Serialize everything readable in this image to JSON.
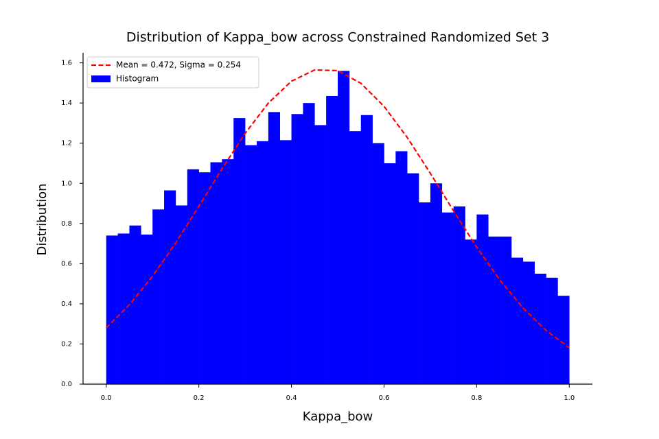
{
  "chart_data": {
    "type": "histogram",
    "title": "Distribution of Kappa_bow across Constrained Randomized Set 3",
    "xlabel": "Kappa_bow",
    "ylabel": "Distribution",
    "xlim": [
      -0.05,
      1.05
    ],
    "ylim": [
      0,
      1.65
    ],
    "xticks": [
      {
        "value": 0,
        "label": "0.0"
      },
      {
        "value": 0.2,
        "label": "0.2"
      },
      {
        "value": 0.4,
        "label": "0.4"
      },
      {
        "value": 0.6,
        "label": "0.6"
      },
      {
        "value": 0.8,
        "label": "0.8"
      },
      {
        "value": 1,
        "label": "1.0"
      }
    ],
    "yticks": [
      {
        "value": 0,
        "label": "0.0"
      },
      {
        "value": 0.2,
        "label": "0.2"
      },
      {
        "value": 0.4,
        "label": "0.4"
      },
      {
        "value": 0.6,
        "label": "0.6"
      },
      {
        "value": 0.8,
        "label": "0.8"
      },
      {
        "value": 1,
        "label": "1.0"
      },
      {
        "value": 1.2,
        "label": "1.2"
      },
      {
        "value": 1.4,
        "label": "1.4"
      },
      {
        "value": 1.6,
        "label": "1.6"
      }
    ],
    "legend": "upper left",
    "series": [
      {
        "name": "Mean = 0.472, Sigma = 0.254",
        "type": "line",
        "color": "#ff0000",
        "dashed": true,
        "x": [
          0,
          0.05,
          0.1,
          0.15,
          0.2,
          0.25,
          0.3,
          0.35,
          0.4,
          0.45,
          0.5,
          0.55,
          0.6,
          0.65,
          0.7,
          0.75,
          0.8,
          0.85,
          0.9,
          0.95,
          1
        ],
        "values": [
          0.2794,
          0.395,
          0.5375,
          0.7031,
          0.8852,
          1.0719,
          1.2488,
          1.3994,
          1.5087,
          1.5647,
          1.5611,
          1.4982,
          1.3834,
          1.2287,
          1.0498,
          0.8629,
          0.6823,
          0.5189,
          0.3798,
          0.2673,
          0.1811
        ]
      },
      {
        "name": "Histogram",
        "type": "histogram",
        "color": "#0000ff",
        "bins": [
          0,
          0.025,
          0.05,
          0.075,
          0.1,
          0.125,
          0.15,
          0.175,
          0.2,
          0.225,
          0.25,
          0.275,
          0.3,
          0.325,
          0.35,
          0.375,
          0.4,
          0.425,
          0.45,
          0.475,
          0.5,
          0.525,
          0.55,
          0.575,
          0.6,
          0.625,
          0.65,
          0.675,
          0.7,
          0.725,
          0.75,
          0.775,
          0.8,
          0.825,
          0.85,
          0.875,
          0.9,
          0.925,
          0.95,
          0.975,
          1
        ],
        "values": [
          0.74,
          0.75,
          0.79,
          0.745,
          0.87,
          0.965,
          0.89,
          1.07,
          1.055,
          1.105,
          1.12,
          1.325,
          1.19,
          1.21,
          1.355,
          1.215,
          1.345,
          1.4,
          1.29,
          1.435,
          1.56,
          1.26,
          1.34,
          1.2,
          1.1,
          1.16,
          1.05,
          0.905,
          1.0,
          0.855,
          0.885,
          0.72,
          0.845,
          0.735,
          0.735,
          0.63,
          0.61,
          0.55,
          0.53,
          0.44
        ]
      }
    ]
  }
}
